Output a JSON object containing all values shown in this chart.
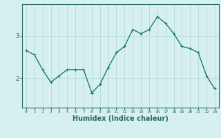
{
  "x": [
    0,
    1,
    2,
    3,
    4,
    5,
    6,
    7,
    8,
    9,
    10,
    11,
    12,
    13,
    14,
    15,
    16,
    17,
    18,
    19,
    20,
    21,
    22,
    23
  ],
  "y": [
    2.65,
    2.55,
    2.2,
    1.9,
    2.05,
    2.2,
    2.2,
    2.2,
    1.65,
    1.85,
    2.25,
    2.6,
    2.75,
    3.15,
    3.05,
    3.15,
    3.45,
    3.3,
    3.05,
    2.75,
    2.7,
    2.6,
    2.05,
    1.75
  ],
  "line_color": "#1a7a6e",
  "marker": "+",
  "markersize": 3,
  "linewidth": 1.0,
  "xlabel": "Humidex (Indice chaleur)",
  "xlabel_fontsize": 7,
  "bg_color": "#d6f0f0",
  "grid_color": "#b8d8d8",
  "tick_color": "#2a6a64",
  "axis_color": "#2a6a64",
  "yticks": [
    2,
    3
  ],
  "ylim": [
    1.3,
    3.75
  ],
  "xlim": [
    -0.5,
    23.5
  ]
}
